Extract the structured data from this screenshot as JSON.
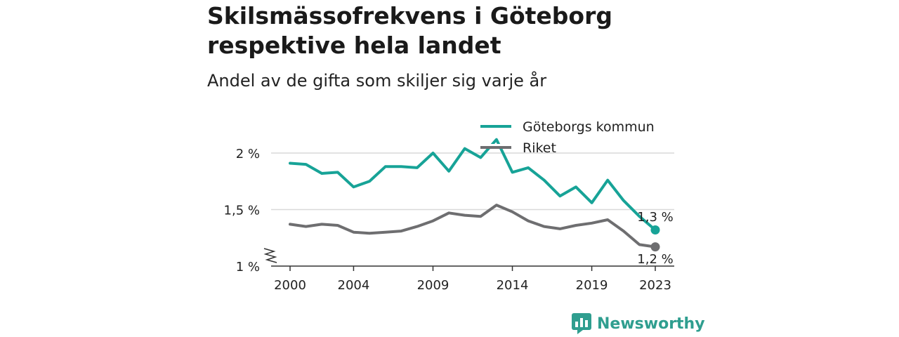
{
  "title": "Skilsmässofrekvens i Göteborg respektive hela landet",
  "subtitle": "Andel av de gifta som skiljer sig varje år",
  "brand": "Newsworthy",
  "colors": {
    "goteborg": "#17a397",
    "riket": "#6e6e70",
    "grid": "#d9d9d9",
    "brand": "#2f9e8f"
  },
  "chart_data": {
    "type": "line",
    "x": [
      2000,
      2001,
      2002,
      2003,
      2004,
      2005,
      2006,
      2007,
      2008,
      2009,
      2010,
      2011,
      2012,
      2013,
      2014,
      2015,
      2016,
      2017,
      2018,
      2019,
      2020,
      2021,
      2022,
      2023
    ],
    "series": [
      {
        "name": "Göteborgs kommun",
        "color": "#17a397",
        "values": [
          1.91,
          1.9,
          1.82,
          1.83,
          1.7,
          1.75,
          1.88,
          1.88,
          1.87,
          2.0,
          1.84,
          2.04,
          1.96,
          2.12,
          1.83,
          1.87,
          1.76,
          1.62,
          1.7,
          1.56,
          1.76,
          1.58,
          1.44,
          1.32
        ]
      },
      {
        "name": "Riket",
        "color": "#6e6e70",
        "values": [
          1.37,
          1.35,
          1.37,
          1.36,
          1.3,
          1.29,
          1.3,
          1.31,
          1.35,
          1.4,
          1.47,
          1.45,
          1.44,
          1.54,
          1.48,
          1.4,
          1.35,
          1.33,
          1.36,
          1.38,
          1.41,
          1.31,
          1.19,
          1.17
        ]
      }
    ],
    "y_ticks": [
      {
        "value": 1.0,
        "label": "1 %"
      },
      {
        "value": 1.5,
        "label": "1,5 %"
      },
      {
        "value": 2.0,
        "label": "2 %"
      }
    ],
    "x_ticks": [
      {
        "value": 2000,
        "label": "2000"
      },
      {
        "value": 2004,
        "label": "2004"
      },
      {
        "value": 2009,
        "label": "2009"
      },
      {
        "value": 2014,
        "label": "2014"
      },
      {
        "value": 2019,
        "label": "2019"
      },
      {
        "value": 2023,
        "label": "2023"
      }
    ],
    "end_labels": [
      "1,3 %",
      "1,2 %"
    ],
    "ylim": [
      1.0,
      2.2
    ],
    "y_axis_broken": true,
    "legend_position": "top-right",
    "grid": true
  }
}
